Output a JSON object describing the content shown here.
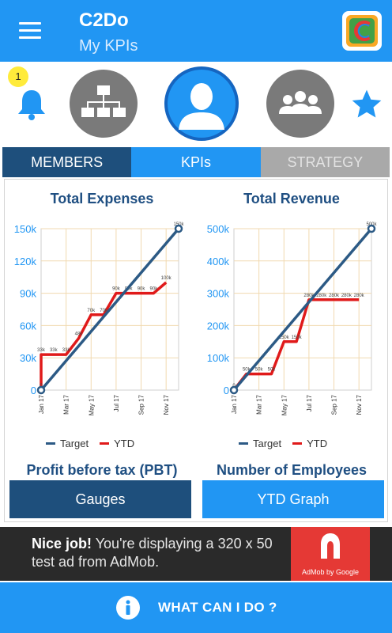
{
  "header": {
    "title": "C2Do",
    "subtitle": "My KPIs"
  },
  "notifications": {
    "count": "1"
  },
  "tabs": [
    {
      "label": "MEMBERS"
    },
    {
      "label": "KPIs"
    },
    {
      "label": "STRATEGY"
    }
  ],
  "colors": {
    "primary": "#2196f3",
    "dark_blue": "#1e4f7c",
    "target_line": "#2c5a85",
    "ytd_line": "#e01a1a",
    "axis_text": "#2196f3"
  },
  "chart_data": [
    {
      "type": "line",
      "title": "Total Expenses",
      "x": [
        "Jan 17",
        "Mar 17",
        "May 17",
        "Jul 17",
        "Sep 17",
        "Nov 17"
      ],
      "ylim": [
        0,
        150000
      ],
      "yticks": [
        "0",
        "30k",
        "60k",
        "90k",
        "120k",
        "150k"
      ],
      "series": [
        {
          "name": "Target",
          "color": "#2c5a85",
          "points": [
            [
              0,
              0
            ],
            [
              11,
              150000
            ]
          ],
          "labels": [
            "0",
            "150k"
          ]
        },
        {
          "name": "YTD",
          "color": "#e01a1a",
          "points": [
            [
              0,
              0
            ],
            [
              0,
              33000
            ],
            [
              1,
              33000
            ],
            [
              2,
              33000
            ],
            [
              3,
              48000
            ],
            [
              4,
              70000
            ],
            [
              5,
              70000
            ],
            [
              6,
              90000
            ],
            [
              7,
              90000
            ],
            [
              8,
              90000
            ],
            [
              9,
              90000
            ],
            [
              10,
              100000
            ]
          ],
          "labels": [
            "",
            "33k",
            "33k",
            "33k",
            "48k",
            "70k",
            "70k",
            "90k",
            "90k",
            "90k",
            "90k",
            "100k"
          ]
        }
      ],
      "legend": "bottom",
      "grid": true
    },
    {
      "type": "line",
      "title": "Total Revenue",
      "x": [
        "Jan 17",
        "Mar 17",
        "May 17",
        "Jul 17",
        "Sep 17",
        "Nov 17"
      ],
      "ylim": [
        0,
        500000
      ],
      "yticks": [
        "0",
        "100k",
        "200k",
        "300k",
        "400k",
        "500k"
      ],
      "series": [
        {
          "name": "Target",
          "color": "#2c5a85",
          "points": [
            [
              0,
              0
            ],
            [
              11,
              500000
            ]
          ],
          "labels": [
            "0",
            "500k"
          ]
        },
        {
          "name": "YTD",
          "color": "#e01a1a",
          "points": [
            [
              0,
              0
            ],
            [
              1,
              50000
            ],
            [
              2,
              50000
            ],
            [
              3,
              50000
            ],
            [
              4,
              150000
            ],
            [
              5,
              150000
            ],
            [
              6,
              280000
            ],
            [
              7,
              280000
            ],
            [
              8,
              280000
            ],
            [
              9,
              280000
            ],
            [
              10,
              280000
            ]
          ],
          "labels": [
            "",
            "50k",
            "50k",
            "50k",
            "150k",
            "150k",
            "280k",
            "280k",
            "280k",
            "280k",
            "280k"
          ]
        }
      ],
      "legend": "bottom",
      "grid": true
    }
  ],
  "legend": {
    "target": "Target",
    "ytd": "YTD"
  },
  "sections": {
    "left": "Profit before tax (PBT)",
    "right": "Number of Employees"
  },
  "buttons": {
    "gauges": "Gauges",
    "ytd_graph": "YTD Graph"
  },
  "ad": {
    "bold": "Nice job!",
    "text": " You're displaying a 320 x 50 test ad from AdMob.",
    "logo_caption": "AdMob by Google"
  },
  "bottom_bar": {
    "label": "WHAT CAN I DO ?"
  }
}
